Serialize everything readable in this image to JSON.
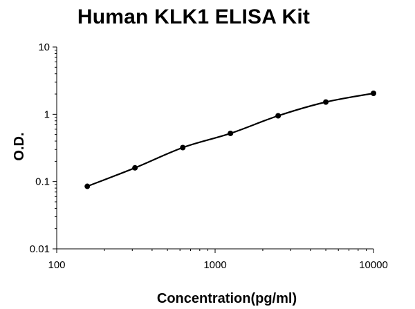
{
  "chart_data": {
    "type": "scatter",
    "title": "Human KLK1 ELISA Kit",
    "xlabel": "Concentration(pg/ml)",
    "ylabel": "O.D.",
    "x_scale": "log",
    "y_scale": "log",
    "xlim": [
      100,
      10000
    ],
    "ylim": [
      0.01,
      10
    ],
    "x_ticks": [
      "100",
      "1000",
      "10000"
    ],
    "y_ticks": [
      "0.01",
      "0.1",
      "1",
      "10"
    ],
    "grid": false,
    "legend": "none",
    "series": [
      {
        "x": [
          156,
          312,
          625,
          1250,
          2500,
          5000,
          10000
        ],
        "y": [
          0.085,
          0.16,
          0.32,
          0.52,
          0.95,
          1.52,
          2.05
        ]
      }
    ],
    "colors": {
      "points": "#000000",
      "curve": "#000000",
      "axes": "#000000"
    }
  }
}
